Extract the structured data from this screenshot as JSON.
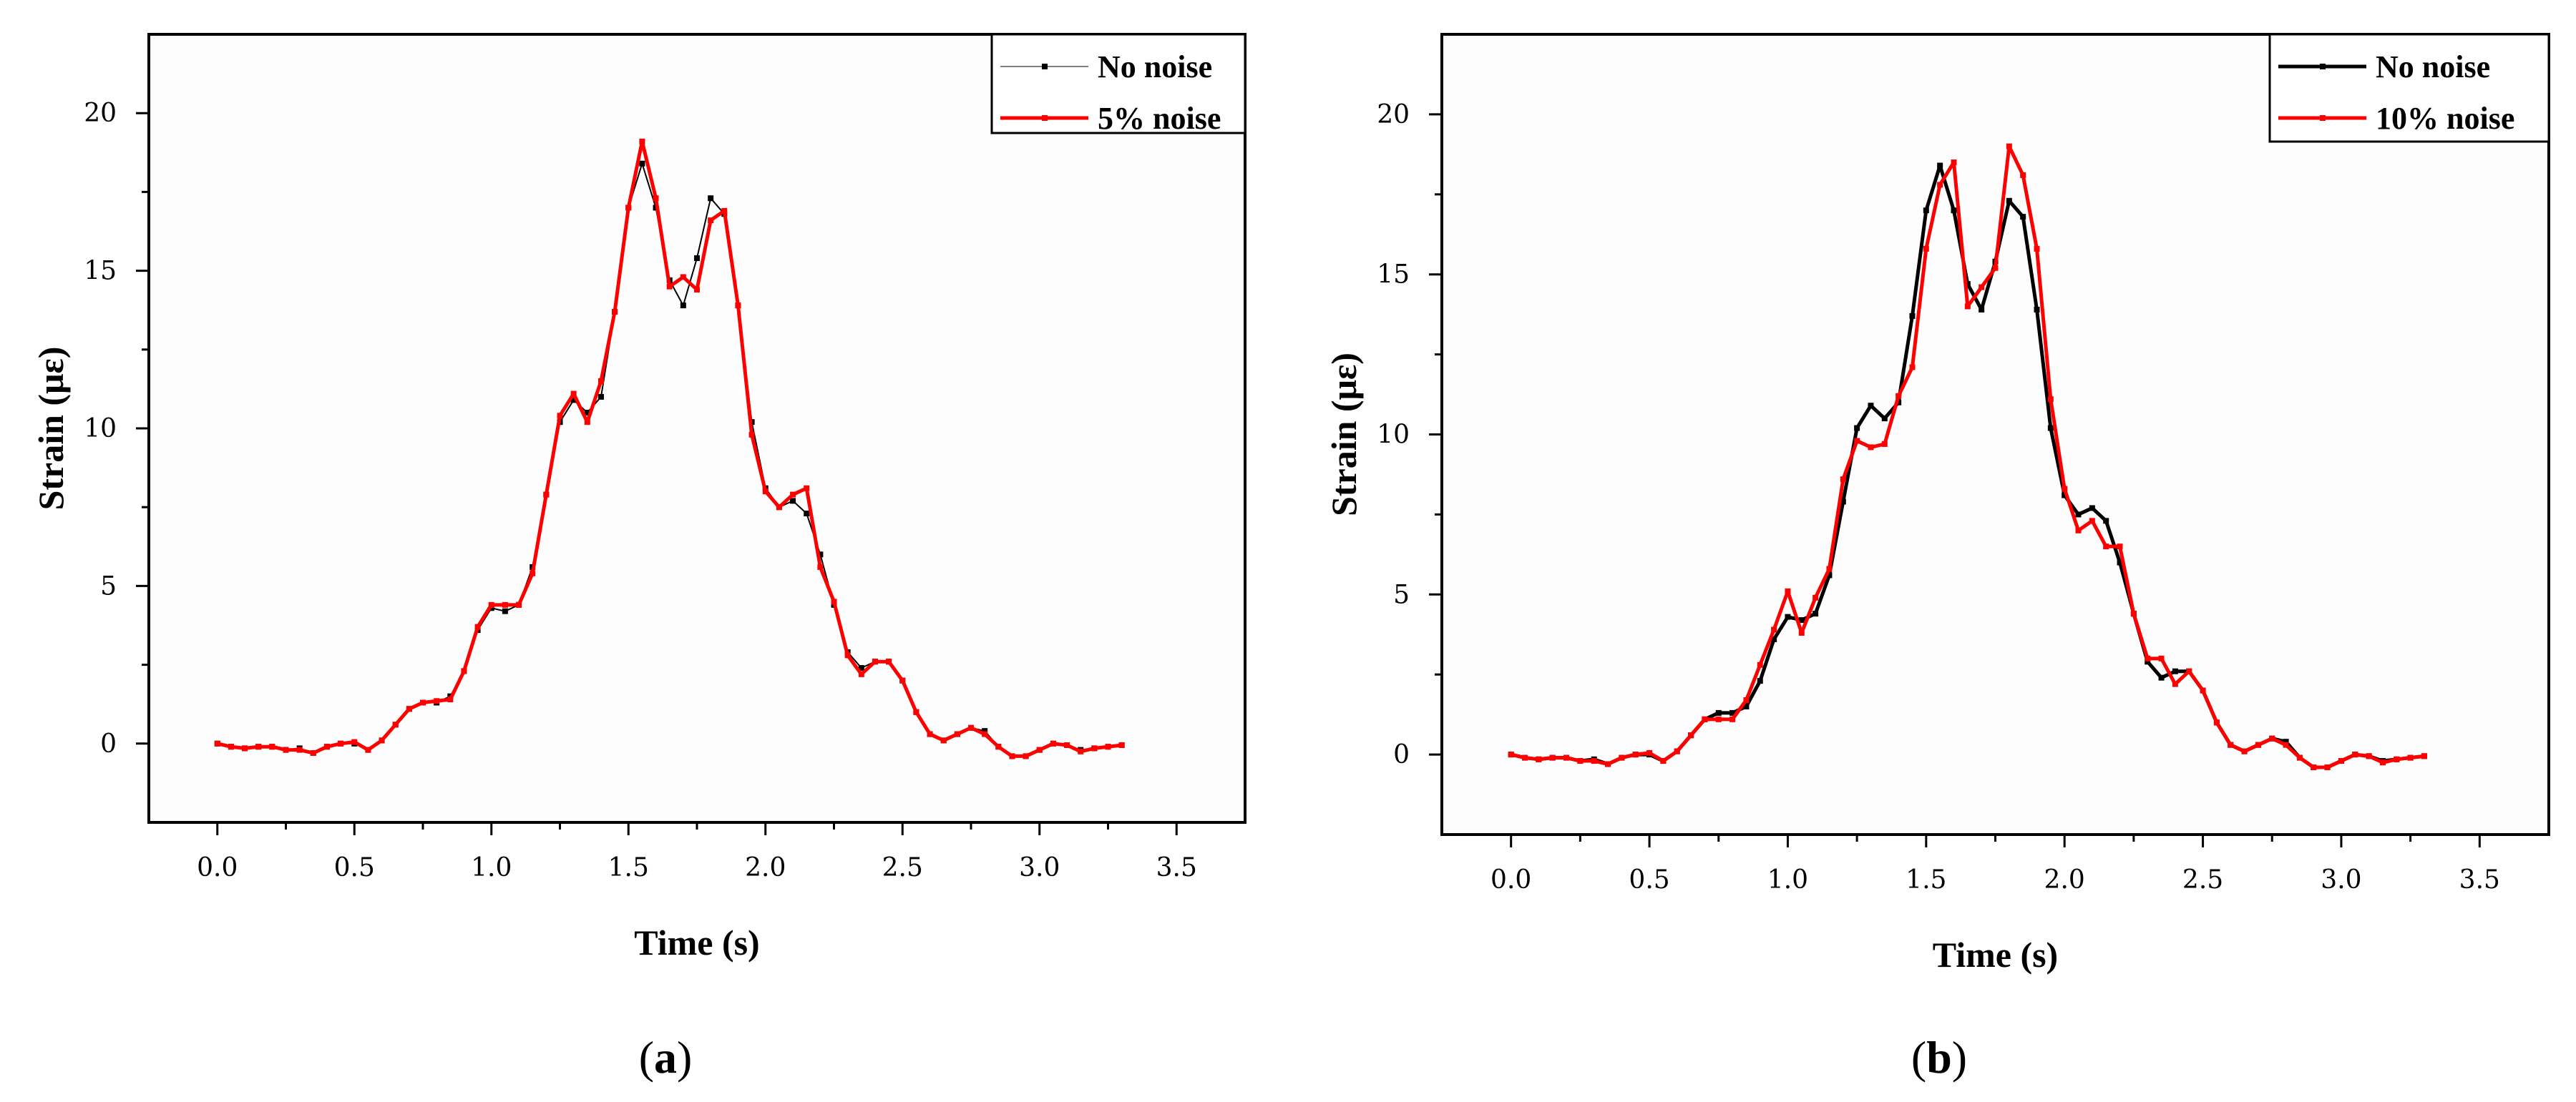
{
  "chart_data": [
    {
      "type": "line",
      "caption": "(a)",
      "caption_letter": "a",
      "xlabel": "Time (s)",
      "ylabel": "Strain (με)",
      "xlim": [
        -0.25,
        3.75
      ],
      "ylim": [
        -2.5,
        22.5
      ],
      "xticks": [
        "0.0",
        "0.5",
        "1.0",
        "1.5",
        "2.0",
        "2.5",
        "3.0",
        "3.5"
      ],
      "yticks": [
        "0",
        "5",
        "10",
        "15",
        "20"
      ],
      "legend_position": "top-right",
      "x_start": 0,
      "x_step": 0.05,
      "series": [
        {
          "name": "No noise",
          "color": "#000000",
          "style": "dots",
          "values": [
            0,
            -0.1,
            -0.15,
            -0.1,
            -0.1,
            -0.2,
            -0.15,
            -0.3,
            -0.1,
            0,
            0,
            -0.2,
            0.1,
            0.6,
            1.1,
            1.3,
            1.3,
            1.5,
            2.3,
            3.6,
            4.3,
            4.2,
            4.4,
            5.6,
            7.9,
            10.2,
            10.9,
            10.5,
            11.0,
            13.7,
            17.0,
            18.4,
            17.0,
            14.7,
            13.9,
            15.4,
            17.3,
            16.8,
            13.9,
            10.2,
            8.1,
            7.5,
            7.7,
            7.3,
            6.0,
            4.4,
            2.9,
            2.4,
            2.6,
            2.6,
            2.0,
            1.0,
            0.3,
            0.1,
            0.3,
            0.5,
            0.4,
            -0.1,
            -0.4,
            -0.4,
            -0.2,
            0,
            -0.05,
            -0.2,
            -0.15,
            -0.1,
            -0.05
          ]
        },
        {
          "name": "5% noise",
          "color": "#ff0000",
          "style": "line",
          "values": [
            0,
            -0.1,
            -0.15,
            -0.1,
            -0.1,
            -0.2,
            -0.2,
            -0.3,
            -0.1,
            0,
            0.05,
            -0.2,
            0.1,
            0.6,
            1.1,
            1.3,
            1.35,
            1.4,
            2.3,
            3.7,
            4.4,
            4.4,
            4.4,
            5.4,
            7.9,
            10.4,
            11.1,
            10.2,
            11.5,
            13.7,
            17.0,
            19.1,
            17.3,
            14.5,
            14.8,
            14.4,
            16.6,
            16.9,
            13.9,
            9.8,
            8.0,
            7.5,
            7.9,
            8.1,
            5.6,
            4.5,
            2.8,
            2.2,
            2.6,
            2.6,
            2.0,
            1.0,
            0.3,
            0.1,
            0.3,
            0.5,
            0.3,
            -0.1,
            -0.4,
            -0.4,
            -0.2,
            0,
            -0.05,
            -0.25,
            -0.15,
            -0.1,
            -0.05
          ]
        }
      ]
    },
    {
      "type": "line",
      "caption": "(b)",
      "caption_letter": "b",
      "xlabel": "Time (s)",
      "ylabel": "Strain (με)",
      "xlim": [
        -0.25,
        3.75
      ],
      "ylim": [
        -2.5,
        22.5
      ],
      "xticks": [
        "0.0",
        "0.5",
        "1.0",
        "1.5",
        "2.0",
        "2.5",
        "3.0",
        "3.5"
      ],
      "yticks": [
        "0",
        "5",
        "10",
        "15",
        "20"
      ],
      "legend_position": "top-right",
      "x_start": 0,
      "x_step": 0.05,
      "series": [
        {
          "name": "No noise",
          "color": "#000000",
          "style": "line",
          "values": [
            0,
            -0.1,
            -0.15,
            -0.1,
            -0.1,
            -0.2,
            -0.15,
            -0.3,
            -0.1,
            0,
            0,
            -0.2,
            0.1,
            0.6,
            1.1,
            1.3,
            1.3,
            1.5,
            2.3,
            3.6,
            4.3,
            4.2,
            4.4,
            5.6,
            7.9,
            10.2,
            10.9,
            10.5,
            11.0,
            13.7,
            17.0,
            18.4,
            17.0,
            14.7,
            13.9,
            15.4,
            17.3,
            16.8,
            13.9,
            10.2,
            8.1,
            7.5,
            7.7,
            7.3,
            6.0,
            4.4,
            2.9,
            2.4,
            2.6,
            2.6,
            2.0,
            1.0,
            0.3,
            0.1,
            0.3,
            0.5,
            0.4,
            -0.1,
            -0.4,
            -0.4,
            -0.2,
            0,
            -0.05,
            -0.2,
            -0.15,
            -0.1,
            -0.05
          ]
        },
        {
          "name": "10% noise",
          "color": "#ff0000",
          "style": "line",
          "values": [
            0,
            -0.1,
            -0.15,
            -0.1,
            -0.1,
            -0.2,
            -0.2,
            -0.3,
            -0.1,
            0,
            0.05,
            -0.2,
            0.1,
            0.6,
            1.1,
            1.1,
            1.1,
            1.7,
            2.8,
            3.9,
            5.1,
            3.8,
            4.9,
            5.8,
            8.6,
            9.8,
            9.6,
            9.7,
            11.2,
            12.1,
            15.8,
            17.8,
            18.5,
            14.0,
            14.6,
            15.2,
            19.0,
            18.1,
            15.8,
            11.1,
            8.3,
            7.0,
            7.3,
            6.5,
            6.5,
            4.4,
            3.0,
            3.0,
            2.2,
            2.6,
            2.0,
            1.0,
            0.3,
            0.1,
            0.3,
            0.5,
            0.3,
            -0.1,
            -0.4,
            -0.4,
            -0.2,
            0,
            -0.05,
            -0.25,
            -0.15,
            -0.1,
            -0.05
          ]
        }
      ]
    }
  ]
}
